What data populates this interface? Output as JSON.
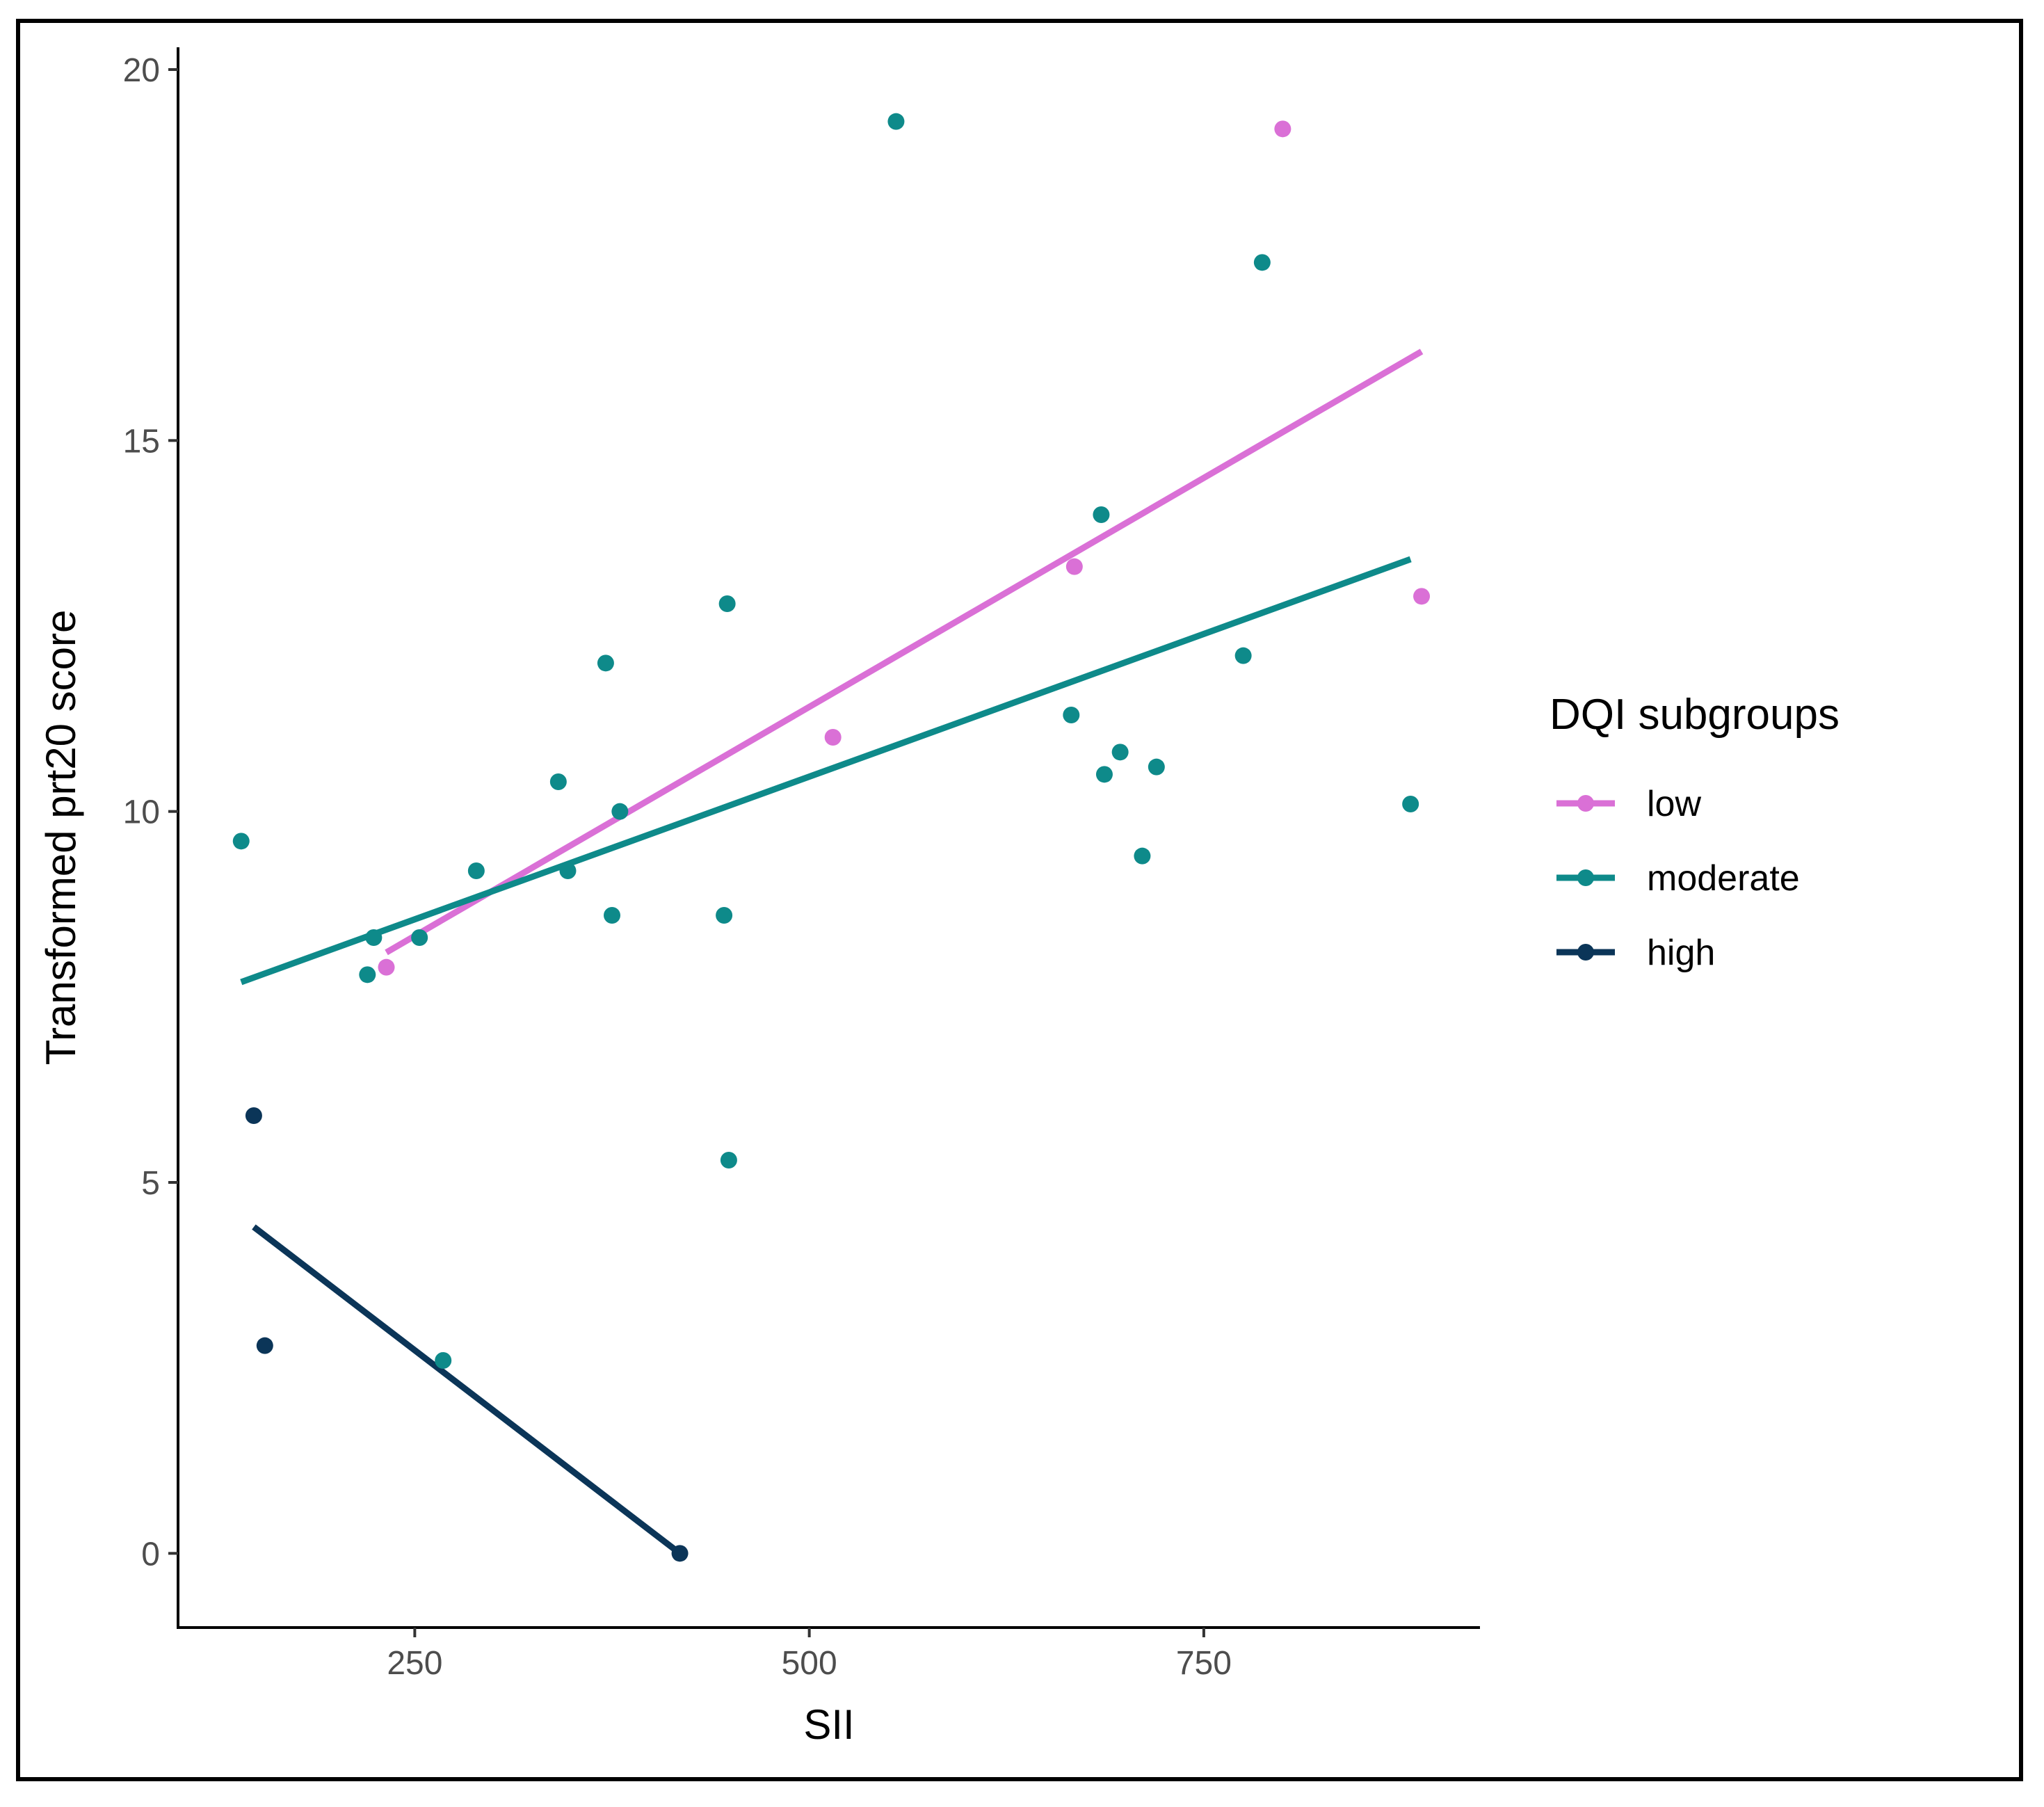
{
  "chart_data": {
    "type": "scatter",
    "title": "",
    "xlabel": "SII",
    "ylabel": "Transformed prt20 score",
    "xlim": [
      100,
      925
    ],
    "ylim": [
      -1,
      20.3
    ],
    "x_ticks": [
      250,
      500,
      750
    ],
    "y_ticks": [
      0,
      5,
      10,
      15,
      20
    ],
    "grid": false,
    "legend": {
      "title": "DQI subgroups",
      "position": "right",
      "entries": [
        "low",
        "moderate",
        "high"
      ]
    },
    "series": [
      {
        "name": "low",
        "color": "#DA70D6",
        "points": [
          {
            "x": 232,
            "y": 7.9
          },
          {
            "x": 515,
            "y": 11.0
          },
          {
            "x": 668,
            "y": 13.3
          },
          {
            "x": 800,
            "y": 19.2
          },
          {
            "x": 888,
            "y": 12.9
          }
        ],
        "fit": {
          "x": [
            232,
            888
          ],
          "y": [
            8.1,
            16.2
          ]
        }
      },
      {
        "name": "moderate",
        "color": "#0E8A8A",
        "points": [
          {
            "x": 140,
            "y": 9.6
          },
          {
            "x": 220,
            "y": 7.8
          },
          {
            "x": 224,
            "y": 8.3
          },
          {
            "x": 253,
            "y": 8.3
          },
          {
            "x": 268,
            "y": 2.6
          },
          {
            "x": 289,
            "y": 9.2
          },
          {
            "x": 341,
            "y": 10.4
          },
          {
            "x": 347,
            "y": 9.2
          },
          {
            "x": 371,
            "y": 12.0
          },
          {
            "x": 375,
            "y": 8.6
          },
          {
            "x": 380,
            "y": 10.0
          },
          {
            "x": 446,
            "y": 8.6
          },
          {
            "x": 448,
            "y": 12.8
          },
          {
            "x": 449,
            "y": 5.3
          },
          {
            "x": 555,
            "y": 19.3
          },
          {
            "x": 666,
            "y": 11.3
          },
          {
            "x": 685,
            "y": 14.0
          },
          {
            "x": 687,
            "y": 10.5
          },
          {
            "x": 697,
            "y": 10.8
          },
          {
            "x": 711,
            "y": 9.4
          },
          {
            "x": 720,
            "y": 10.6
          },
          {
            "x": 775,
            "y": 12.1
          },
          {
            "x": 787,
            "y": 17.4
          },
          {
            "x": 881,
            "y": 10.1
          }
        ],
        "fit": {
          "x": [
            140,
            881
          ],
          "y": [
            7.7,
            13.4
          ]
        }
      },
      {
        "name": "high",
        "color": "#0B3558",
        "points": [
          {
            "x": 148,
            "y": 5.9
          },
          {
            "x": 155,
            "y": 2.8
          },
          {
            "x": 418,
            "y": 0.0
          }
        ],
        "fit": {
          "x": [
            148,
            418
          ],
          "y": [
            4.4,
            0.0
          ]
        }
      }
    ]
  }
}
